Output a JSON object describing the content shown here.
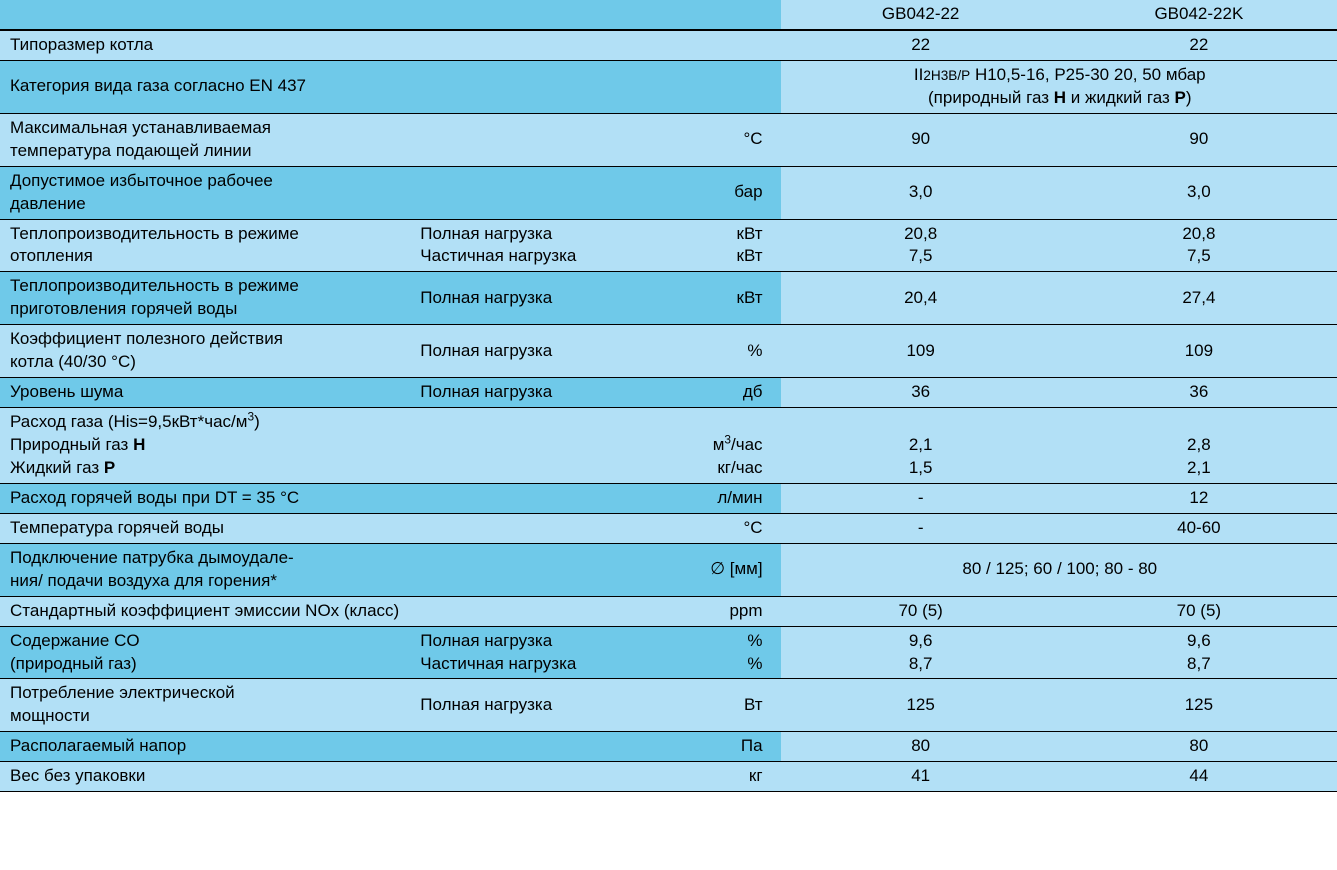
{
  "colors": {
    "light": "#b2e0f6",
    "dark": "#6fc9e9"
  },
  "header": {
    "model1": "GB042-22",
    "model2": "GB042-22K"
  },
  "rows": {
    "boiler_size": {
      "param": "Типоразмер котла",
      "v1": "22",
      "v2": "22"
    },
    "gas_category": {
      "param": "Категория вида газа согласно EN 437",
      "line1_pre": "II",
      "line1_sub": "2H3B/P",
      "line1_mid": " H10,5-16, P25-30 ",
      "line1_end": "20, 50 мбар",
      "line2_a": "(природный газ ",
      "line2_h": "H",
      "line2_b": " и жидкий газ ",
      "line2_p": "P",
      "line2_c": ")"
    },
    "max_temp": {
      "param_l1": "Максимальная устанавливаемая",
      "param_l2": "температура подающей линии",
      "unit": "°C",
      "v1": "90",
      "v2": "90"
    },
    "pressure": {
      "param_l1": "Допустимое избыточное рабочее",
      "param_l2": "давление",
      "unit": "бар",
      "v1": "3,0",
      "v2": "3,0"
    },
    "heat_output_heating": {
      "param_l1": "Теплопроизводительность в режиме",
      "param_l2": "отопления",
      "sub1": "Полная нагрузка",
      "unit1": "кВт",
      "v1a": "20,8",
      "v2a": "20,8",
      "sub2": "Частичная нагрузка",
      "unit2": "кВт",
      "v1b": "7,5",
      "v2b": "7,5"
    },
    "heat_output_dhw": {
      "param_l1": "Теплопроизводительность в режиме",
      "param_l2": "приготовления горячей воды",
      "sub": "Полная нагрузка",
      "unit": "кВт",
      "v1": "20,4",
      "v2": "27,4"
    },
    "efficiency": {
      "param_l1": "Коэффициент полезного действия",
      "param_l2": "котла (40/30 °C)",
      "sub": "Полная нагрузка",
      "unit": "%",
      "v1": "109",
      "v2": "109"
    },
    "noise": {
      "param": "Уровень шума",
      "sub": "Полная нагрузка",
      "unit": "дб",
      "v1": "36",
      "v2": "36"
    },
    "gas_flow": {
      "title_a": "Расход газа (His=9,5кВт*час/м",
      "title_sup": "3",
      "title_b": ")",
      "nat_a": "Природный газ ",
      "nat_b": "H",
      "liq_a": "Жидкий газ ",
      "liq_b": "P",
      "unit1_a": "м",
      "unit1_sup": "3",
      "unit1_b": "/час",
      "unit2": "кг/час",
      "v1a": "2,1",
      "v2a": "2,8",
      "v1b": "1,5",
      "v2b": "2,1"
    },
    "dhw_flow": {
      "param": "Расход горячей воды при DT = 35 °C",
      "unit": "л/мин",
      "v1": "-",
      "v2": "12"
    },
    "dhw_temp": {
      "param": "Температура горячей воды",
      "unit": "°C",
      "v1": "-",
      "v2": "40-60"
    },
    "flue": {
      "param_l1": "Подключение патрубка дымоудале-",
      "param_l2": "ния/ подачи воздуха для горения*",
      "unit": "∅ [мм]",
      "val": "80 / 125; 60 / 100; 80 - 80"
    },
    "nox": {
      "param": "Стандартный коэффициент эмиссии NOx (класс)",
      "unit": "ppm",
      "v1": "70 (5)",
      "v2": "70 (5)"
    },
    "co": {
      "param_l1": "Содержание CO",
      "param_l2": "(природный газ)",
      "sub1": "Полная нагрузка",
      "unit1": "%",
      "v1a": "9,6",
      "v2a": "9,6",
      "sub2": "Частичная нагрузка",
      "unit2": "%",
      "v1b": "8,7",
      "v2b": "8,7"
    },
    "power": {
      "param_l1": "Потребление электрической",
      "param_l2": "мощности",
      "sub": "Полная нагрузка",
      "unit": "Вт",
      "v1": "125",
      "v2": "125"
    },
    "head": {
      "param": "Располагаемый напор",
      "unit": "Па",
      "v1": "80",
      "v2": "80"
    },
    "weight": {
      "param": "Вес без упаковки",
      "unit": "кг",
      "v1": "41",
      "v2": "44"
    }
  }
}
